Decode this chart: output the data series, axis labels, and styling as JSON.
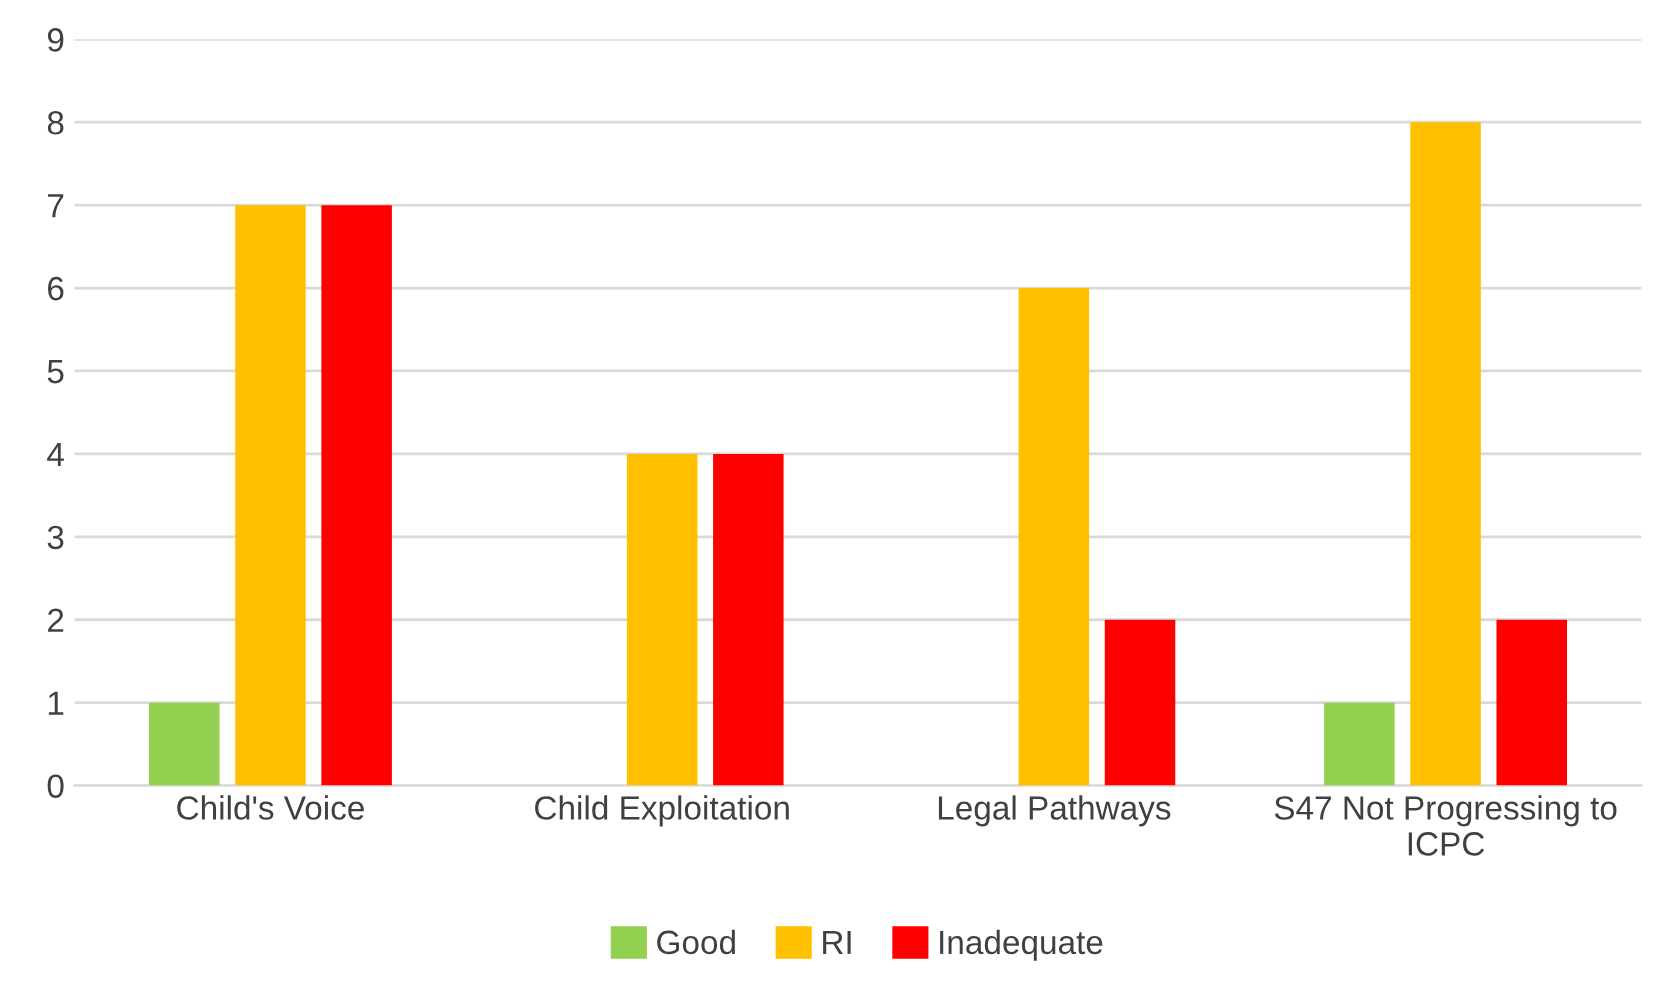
{
  "chart_data": {
    "type": "bar",
    "categories": [
      "Child's Voice",
      "Child Exploitation",
      "Legal Pathways",
      "S47 Not Progressing to ICPC"
    ],
    "series": [
      {
        "name": "Good",
        "color": "#92d050",
        "values": [
          1,
          0,
          0,
          1
        ]
      },
      {
        "name": "RI",
        "color": "#ffc000",
        "values": [
          7,
          4,
          6,
          8
        ]
      },
      {
        "name": "Inadequate",
        "color": "#ff0000",
        "values": [
          7,
          4,
          2,
          2
        ]
      }
    ],
    "ylim": [
      0,
      9
    ],
    "yticks": [
      0,
      1,
      2,
      3,
      4,
      5,
      6,
      7,
      8,
      9
    ],
    "grid": "y",
    "legend": "bottom"
  }
}
